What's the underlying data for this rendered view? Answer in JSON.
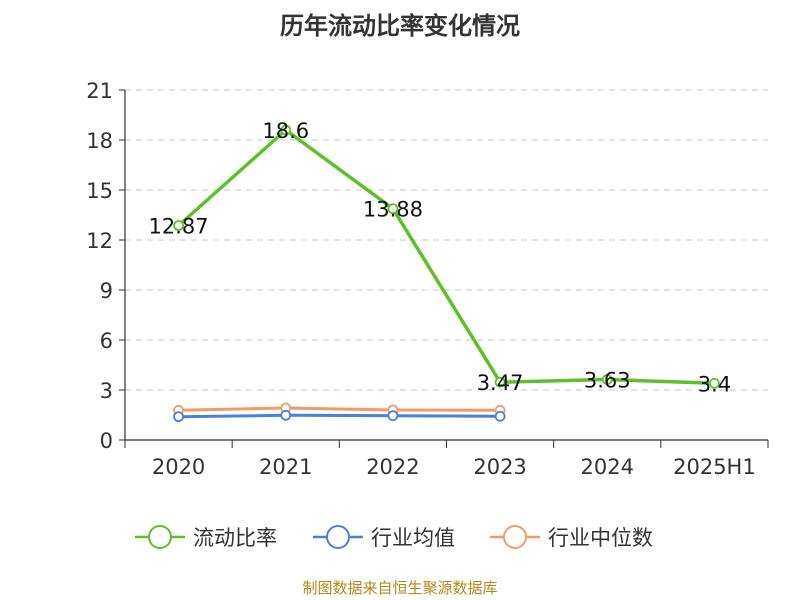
{
  "chart_data": {
    "type": "line",
    "title": "历年流动比率变化情况",
    "categories": [
      "2020",
      "2021",
      "2022",
      "2023",
      "2024",
      "2025H1"
    ],
    "ylim": [
      0,
      21
    ],
    "yticks": [
      0,
      3,
      6,
      9,
      12,
      15,
      18,
      21
    ],
    "grid": "horizontal-dashed",
    "legend_position": "bottom",
    "series": [
      {
        "name": "流动比率",
        "color": "#5cc129",
        "values": [
          12.87,
          18.6,
          13.88,
          3.47,
          3.63,
          3.4
        ],
        "labels": [
          "12.87",
          "18.6",
          "13.88",
          "3.47",
          "3.63",
          "3.4"
        ]
      },
      {
        "name": "行业均值",
        "color": "#4a7fde",
        "values": [
          1.4,
          1.48,
          1.46,
          1.42,
          null,
          null
        ]
      },
      {
        "name": "行业中位数",
        "color": "#f59a65",
        "values": [
          1.78,
          1.92,
          1.8,
          1.78,
          null,
          null
        ]
      }
    ]
  },
  "footer": {
    "source": "制图数据来自恒生聚源数据库"
  }
}
